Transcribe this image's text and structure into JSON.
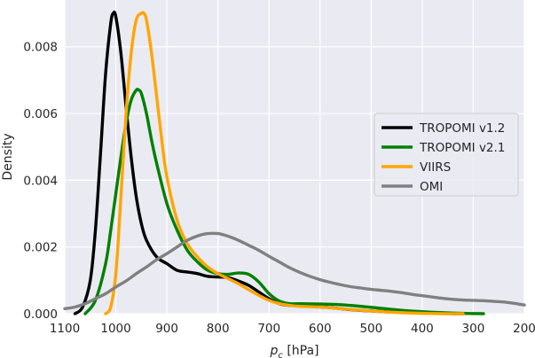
{
  "chart_data": {
    "type": "line",
    "xlabel_symbol": "p",
    "xlabel_subscript": "c",
    "xlabel_unit": " [hPa]",
    "ylabel": "Density",
    "xlim": [
      1100,
      200
    ],
    "ylim": [
      0,
      0.0094
    ],
    "x_ticks": [
      1100,
      1000,
      900,
      800,
      700,
      600,
      500,
      400,
      300,
      200
    ],
    "x_tick_labels": [
      "1100",
      "1000",
      "900",
      "800",
      "700",
      "600",
      "500",
      "400",
      "300",
      "200"
    ],
    "y_ticks": [
      0,
      0.002,
      0.004,
      0.006,
      0.008
    ],
    "y_tick_labels": [
      "0.000",
      "0.002",
      "0.004",
      "0.006",
      "0.008"
    ],
    "grid": true,
    "legend_position": "center-right",
    "background_color": "#EAEAF2",
    "grid_color": "#FFFFFF",
    "series": [
      {
        "name": "TROPOMI v1.2",
        "color": "#000000",
        "x": [
          1080,
          1065,
          1050,
          1040,
          1030,
          1020,
          1010,
          1005,
          1000,
          990,
          980,
          970,
          960,
          950,
          940,
          920,
          900,
          880,
          860,
          840,
          820,
          800,
          780,
          760,
          740,
          720,
          700,
          680,
          660,
          620,
          580,
          540,
          500,
          460,
          420,
          380,
          340,
          320
        ],
        "y": [
          0.0,
          0.0002,
          0.001,
          0.0025,
          0.0048,
          0.0072,
          0.0087,
          0.009,
          0.0089,
          0.0078,
          0.0062,
          0.0047,
          0.0035,
          0.0027,
          0.0022,
          0.0017,
          0.0015,
          0.0013,
          0.00125,
          0.0012,
          0.00112,
          0.0011,
          0.00108,
          0.00098,
          0.00085,
          0.00065,
          0.00045,
          0.0003,
          0.00025,
          0.00022,
          0.00018,
          0.00012,
          8e-05,
          5e-05,
          3e-05,
          1e-05,
          0.0,
          0.0
        ]
      },
      {
        "name": "TROPOMI v2.1",
        "color": "#008000",
        "x": [
          1060,
          1040,
          1020,
          1010,
          1000,
          990,
          980,
          970,
          960,
          955,
          950,
          940,
          930,
          920,
          900,
          880,
          860,
          840,
          820,
          800,
          780,
          760,
          740,
          720,
          700,
          680,
          660,
          640,
          600,
          560,
          520,
          480,
          440,
          400,
          360,
          320,
          280
        ],
        "y": [
          0.0,
          0.0004,
          0.0015,
          0.0025,
          0.0036,
          0.0047,
          0.0057,
          0.0064,
          0.0067,
          0.0067,
          0.0066,
          0.006,
          0.0052,
          0.0045,
          0.0033,
          0.0025,
          0.0019,
          0.00155,
          0.0013,
          0.0012,
          0.00118,
          0.00122,
          0.00118,
          0.00095,
          0.0006,
          0.00038,
          0.0003,
          0.0003,
          0.00029,
          0.00027,
          0.00022,
          0.00016,
          0.0001,
          6e-05,
          3e-05,
          1e-05,
          0.0
        ]
      },
      {
        "name": "VIIRS",
        "color": "#FFA500",
        "x": [
          1020,
          1010,
          1000,
          990,
          980,
          970,
          960,
          950,
          945,
          940,
          930,
          920,
          910,
          900,
          880,
          860,
          840,
          820,
          800,
          780,
          760,
          740,
          720,
          700,
          680,
          660,
          640,
          600,
          560,
          520,
          480,
          440,
          400,
          360,
          320
        ],
        "y": [
          0.0,
          0.0002,
          0.0012,
          0.0035,
          0.006,
          0.0078,
          0.0088,
          0.009,
          0.009,
          0.0088,
          0.0078,
          0.0065,
          0.0052,
          0.0041,
          0.0028,
          0.0021,
          0.0017,
          0.0014,
          0.0012,
          0.00105,
          0.0009,
          0.00072,
          0.00055,
          0.0004,
          0.0003,
          0.00025,
          0.00022,
          0.0002,
          0.00015,
          0.0001,
          6e-05,
          3e-05,
          1e-05,
          0.0,
          0.0
        ]
      },
      {
        "name": "OMI",
        "color": "#808080",
        "x": [
          1100,
          1080,
          1060,
          1040,
          1020,
          1000,
          980,
          960,
          940,
          920,
          900,
          880,
          860,
          840,
          820,
          800,
          780,
          760,
          740,
          720,
          700,
          680,
          660,
          640,
          620,
          600,
          580,
          560,
          540,
          520,
          500,
          480,
          460,
          440,
          420,
          400,
          380,
          360,
          340,
          320,
          300,
          280,
          260,
          240,
          220,
          200
        ],
        "y": [
          0.00015,
          0.0002,
          0.0003,
          0.00045,
          0.0006,
          0.0008,
          0.00098,
          0.0012,
          0.0014,
          0.00162,
          0.0018,
          0.002,
          0.0022,
          0.00233,
          0.0024,
          0.0024,
          0.00232,
          0.0022,
          0.00205,
          0.0019,
          0.00172,
          0.00155,
          0.00138,
          0.00124,
          0.00112,
          0.00102,
          0.00094,
          0.00087,
          0.00081,
          0.00077,
          0.00073,
          0.0007,
          0.00067,
          0.00063,
          0.00058,
          0.00054,
          0.0005,
          0.00046,
          0.00043,
          0.00041,
          0.0004,
          0.00039,
          0.00037,
          0.00035,
          0.00031,
          0.00026
        ]
      }
    ]
  }
}
